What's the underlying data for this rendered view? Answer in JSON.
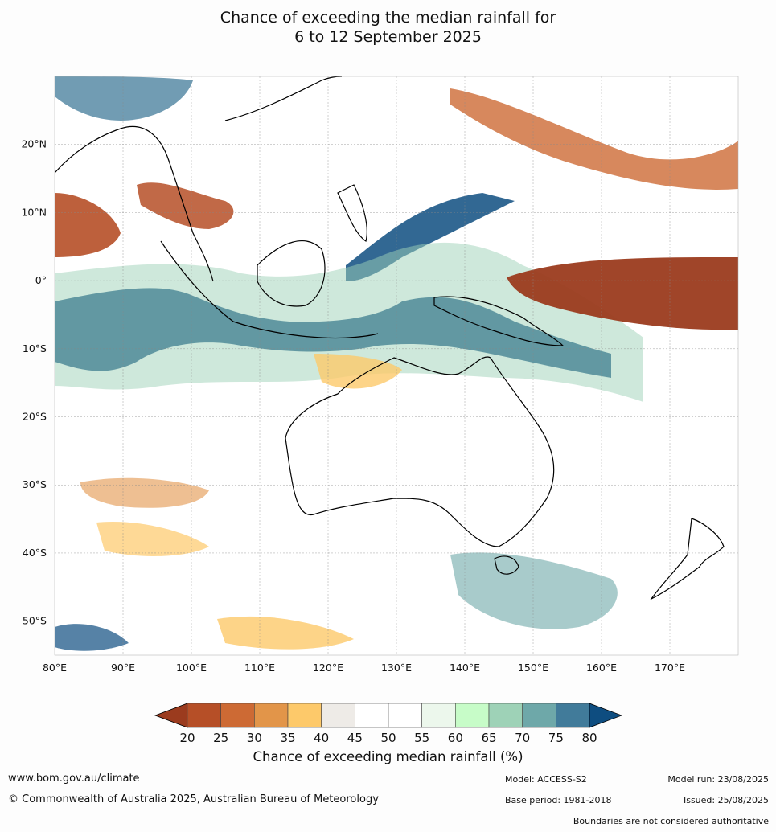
{
  "title": {
    "line1": "Chance of exceeding the median rainfall for",
    "line2": "6 to 12 September 2025"
  },
  "map": {
    "lon_labels": [
      "80°E",
      "90°E",
      "100°E",
      "110°E",
      "120°E",
      "130°E",
      "140°E",
      "150°E",
      "160°E",
      "170°E"
    ],
    "lon_values": [
      80,
      90,
      100,
      110,
      120,
      130,
      140,
      150,
      160,
      170
    ],
    "lat_labels": [
      "20°N",
      "10°N",
      "0°",
      "10°S",
      "20°S",
      "30°S",
      "40°S",
      "50°S"
    ],
    "lat_values": [
      20,
      10,
      0,
      -10,
      -20,
      -30,
      -40,
      -50
    ],
    "extent": {
      "lon_min": 80,
      "lon_max": 180,
      "lat_min": -55,
      "lat_max": 30
    }
  },
  "colorbar": {
    "ticks": [
      "20",
      "25",
      "30",
      "35",
      "40",
      "45",
      "50",
      "55",
      "60",
      "65",
      "70",
      "75",
      "80"
    ],
    "colors": [
      "#9b3b1e",
      "#b64f27",
      "#cd6a34",
      "#e29549",
      "#fdc96a",
      "#eeebe7",
      "#ffffff",
      "#ffffff",
      "#ecf7ec",
      "#c7fcc8",
      "#9ed2b7",
      "#6ea8a9",
      "#417b9a",
      "#0e4d80"
    ],
    "title": "Chance of exceeding median rainfall (%)"
  },
  "footer": {
    "website": "www.bom.gov.au/climate",
    "copyright": "© Commonwealth of Australia 2025, Australian Bureau of Meteorology",
    "model": "Model: ACCESS-S2",
    "base_period": "Base period: 1981-2018",
    "model_run": "Model run: 23/08/2025",
    "issued": "Issued: 25/08/2025",
    "disclaimer": "Boundaries are not considered authoritative"
  }
}
